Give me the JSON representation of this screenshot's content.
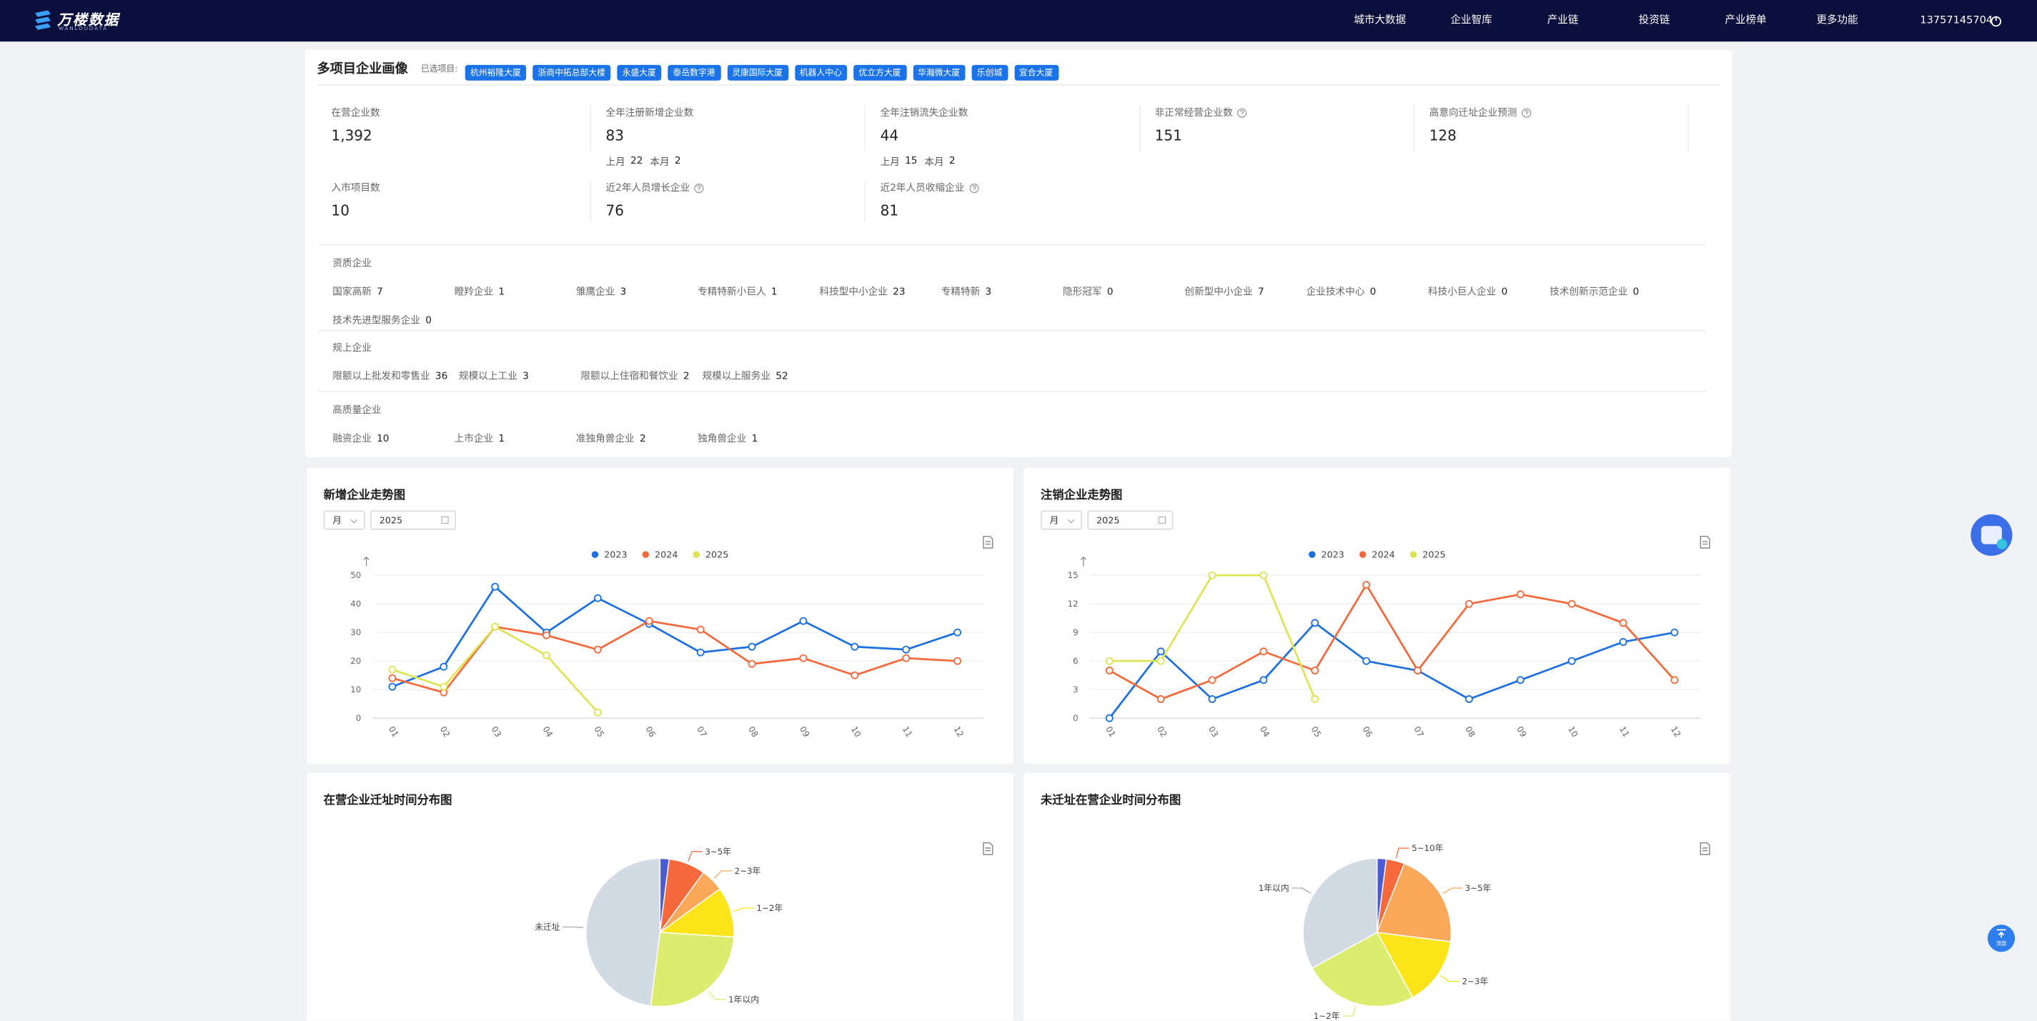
{
  "nav": {
    "logo": "万楼数据",
    "logo_sub": "WANLOUDATA",
    "menu": [
      "城市大数据",
      "企业智库",
      "产业链",
      "投资链",
      "产业榜单",
      "更多功能"
    ],
    "user": "13757145704"
  },
  "profile": {
    "title": "多项目企业画像",
    "selected_label": "已选项目:",
    "projects": [
      "杭州裕隆大厦",
      "浙商中拓总部大楼",
      "永盛大厦",
      "泰岳数字港",
      "灵康国际大厦",
      "机器人中心",
      "优立方大厦",
      "华瀚微大厦",
      "乐创城",
      "宜合大厦"
    ],
    "stats_rows": [
      [
        {
          "label": "在营企业数",
          "value": "1,392"
        },
        {
          "label": "全年注册新增企业数",
          "value": 83,
          "sub": [
            {
              "label": "上月",
              "value": 22
            },
            {
              "label": "本月",
              "value": 2
            }
          ]
        },
        {
          "label": "全年注销流失企业数",
          "value": 44,
          "sub": [
            {
              "label": "上月",
              "value": 15
            },
            {
              "label": "本月",
              "value": 2
            }
          ]
        },
        {
          "label": "非正常经营企业数",
          "value": 151,
          "help": true
        },
        {
          "label": "高意向迁址企业预测",
          "value": 128,
          "help": true
        }
      ],
      [
        {
          "label": "入市项目数",
          "value": 10
        },
        {
          "label": "近2年人员增长企业",
          "value": 76,
          "help": true
        },
        {
          "label": "近2年人员收缩企业",
          "value": 81,
          "help": true
        }
      ]
    ],
    "groups": [
      {
        "title": "资质企业",
        "items": [
          {
            "label": "国家高新",
            "value": 7
          },
          {
            "label": "瞪羚企业",
            "value": 1
          },
          {
            "label": "雏鹰企业",
            "value": 3
          },
          {
            "label": "专精特新小巨人",
            "value": 1
          },
          {
            "label": "科技型中小企业",
            "value": 23
          },
          {
            "label": "专精特新",
            "value": 3
          },
          {
            "label": "隐形冠军",
            "value": 0
          },
          {
            "label": "创新型中小企业",
            "value": 7
          },
          {
            "label": "企业技术中心",
            "value": 0
          },
          {
            "label": "科技小巨人企业",
            "value": 0
          },
          {
            "label": "技术创新示范企业",
            "value": 0
          },
          {
            "label": "技术先进型服务企业",
            "value": 0
          }
        ]
      },
      {
        "title": "规上企业",
        "items": [
          {
            "label": "限额以上批发和零售业",
            "value": 36
          },
          {
            "label": "规模以上工业",
            "value": 3
          },
          {
            "label": "限额以上住宿和餐饮业",
            "value": 2
          },
          {
            "label": "规模以上服务业",
            "value": 52
          }
        ]
      },
      {
        "title": "高质量企业",
        "items": [
          {
            "label": "融资企业",
            "value": 10
          },
          {
            "label": "上市企业",
            "value": 1
          },
          {
            "label": "准独角兽企业",
            "value": 2
          },
          {
            "label": "独角兽企业",
            "value": 1
          }
        ]
      }
    ]
  },
  "chart_data": [
    {
      "type": "line",
      "title": "新增企业走势图",
      "filters": [
        "月",
        "2025"
      ],
      "categories": [
        "01",
        "02",
        "03",
        "04",
        "05",
        "06",
        "07",
        "08",
        "09",
        "10",
        "11",
        "12"
      ],
      "series": [
        {
          "name": "2023",
          "color": "#1d6fe0",
          "values": [
            11,
            18,
            46,
            30,
            42,
            33,
            23,
            25,
            34,
            25,
            24,
            30
          ]
        },
        {
          "name": "2024",
          "color": "#f5693d",
          "values": [
            14,
            9,
            32,
            29,
            24,
            34,
            31,
            19,
            21,
            15,
            21,
            20
          ]
        },
        {
          "name": "2025",
          "color": "#dde454",
          "values": [
            17,
            11,
            32,
            22,
            2,
            null,
            null,
            null,
            null,
            null,
            null,
            null
          ]
        }
      ],
      "ylim": [
        0,
        50
      ],
      "yticks": [
        0,
        10,
        20,
        30,
        40,
        50
      ],
      "grid": true,
      "legend": "top"
    },
    {
      "type": "line",
      "title": "注销企业走势图",
      "filters": [
        "月",
        "2025"
      ],
      "categories": [
        "01",
        "02",
        "03",
        "04",
        "05",
        "06",
        "07",
        "08",
        "09",
        "10",
        "11",
        "12"
      ],
      "series": [
        {
          "name": "2023",
          "color": "#1d6fe0",
          "values": [
            0,
            7,
            2,
            4,
            10,
            6,
            5,
            2,
            4,
            6,
            8,
            9
          ]
        },
        {
          "name": "2024",
          "color": "#f5693d",
          "values": [
            5,
            2,
            4,
            7,
            5,
            14,
            5,
            12,
            13,
            12,
            10,
            4
          ]
        },
        {
          "name": "2025",
          "color": "#dde454",
          "values": [
            6,
            6,
            15,
            15,
            2,
            null,
            null,
            null,
            null,
            null,
            null,
            null
          ]
        }
      ],
      "ylim": [
        0,
        15
      ],
      "yticks": [
        0,
        3,
        6,
        9,
        12,
        15
      ],
      "grid": true,
      "legend": "top"
    },
    {
      "type": "pie",
      "title": "在营企业迁址时间分布图",
      "categories": [
        null,
        "3~5年",
        "2~3年",
        "1~2年",
        "1年以内",
        "未迁址"
      ],
      "values": [
        2,
        8,
        5,
        11,
        26,
        48
      ],
      "colors": [
        "#4a5bd4",
        "#f5693d",
        "#fba85b",
        "#fbe41a",
        "#dbec6f",
        "#d2dae3"
      ]
    },
    {
      "type": "pie",
      "title": "未迁址在营企业时间分布图",
      "categories": [
        null,
        "5~10年",
        "3~5年",
        "2~3年",
        "1~2年",
        "1年以内"
      ],
      "values": [
        2,
        4,
        21,
        15,
        25,
        33
      ],
      "colors": [
        "#4a5bd4",
        "#f5693d",
        "#fba85b",
        "#fbe41a",
        "#dbec6f",
        "#d2dae3"
      ]
    }
  ],
  "float": {
    "top": "顶部"
  }
}
